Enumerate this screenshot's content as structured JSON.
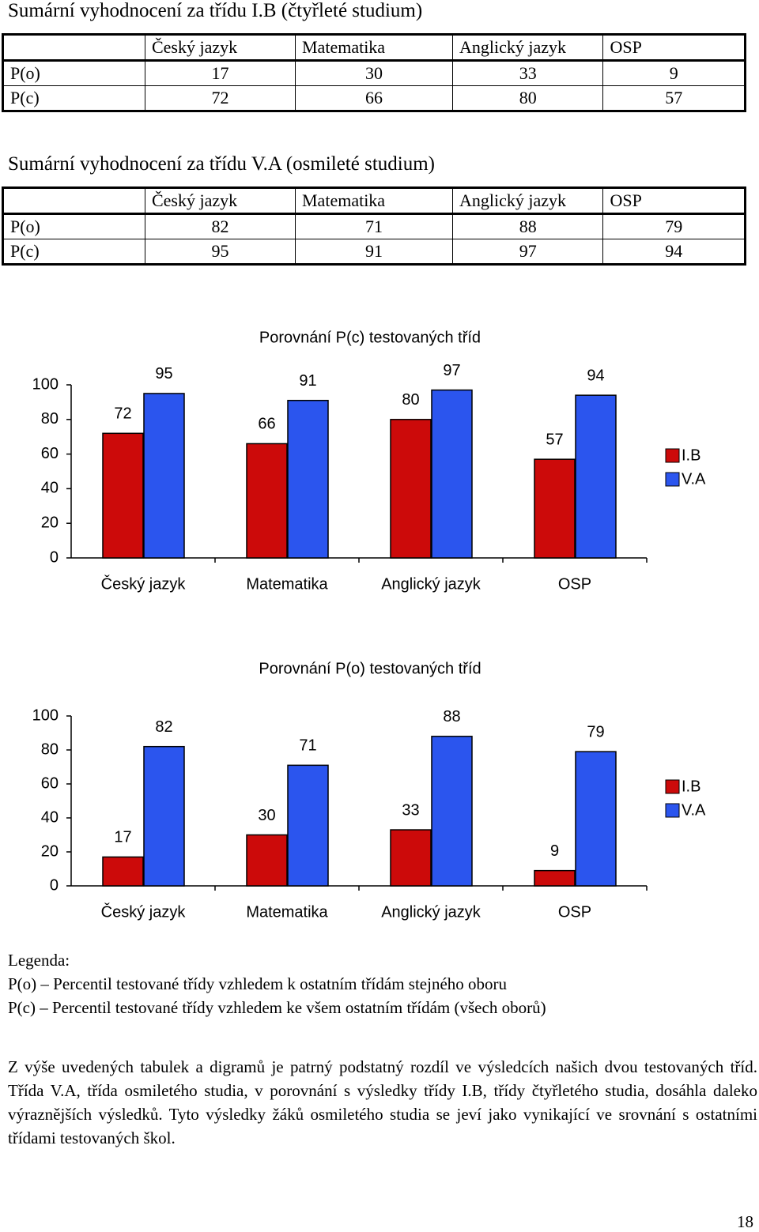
{
  "sections": [
    {
      "title": "Sumární vyhodnocení za třídu I.B (čtyřleté studium)",
      "table": {
        "headers": [
          "Český jazyk",
          "Matematika",
          "Anglický jazyk",
          "OSP"
        ],
        "rows": [
          {
            "label": "P(o)",
            "values": [
              17,
              30,
              33,
              9
            ]
          },
          {
            "label": "P(c)",
            "values": [
              72,
              66,
              80,
              57
            ]
          }
        ]
      }
    },
    {
      "title": "Sumární vyhodnocení za třídu V.A (osmileté studium)",
      "table": {
        "headers": [
          "Český jazyk",
          "Matematika",
          "Anglický jazyk",
          "OSP"
        ],
        "rows": [
          {
            "label": "P(o)",
            "values": [
              82,
              71,
              88,
              79
            ]
          },
          {
            "label": "P(c)",
            "values": [
              95,
              91,
              97,
              94
            ]
          }
        ]
      }
    }
  ],
  "chart_data": [
    {
      "type": "bar",
      "title": "Porovnání P(c) testovaných tříd",
      "categories": [
        "Český jazyk",
        "Matematika",
        "Anglický jazyk",
        "OSP"
      ],
      "series": [
        {
          "name": "I.B",
          "color": "#cc0a0a",
          "values": [
            72,
            66,
            80,
            57
          ]
        },
        {
          "name": "V.A",
          "color": "#2b55ee",
          "values": [
            95,
            91,
            97,
            94
          ]
        }
      ],
      "ylim": [
        0,
        100
      ],
      "yticks": [
        0,
        20,
        40,
        60,
        80,
        100
      ],
      "legend": "right"
    },
    {
      "type": "bar",
      "title": "Porovnání P(o) testovaných tříd",
      "categories": [
        "Český jazyk",
        "Matematika",
        "Anglický jazyk",
        "OSP"
      ],
      "series": [
        {
          "name": "I.B",
          "color": "#cc0a0a",
          "values": [
            17,
            30,
            33,
            9
          ]
        },
        {
          "name": "V.A",
          "color": "#2b55ee",
          "values": [
            82,
            71,
            88,
            79
          ]
        }
      ],
      "ylim": [
        0,
        100
      ],
      "yticks": [
        0,
        20,
        40,
        60,
        80,
        100
      ],
      "legend": "right"
    }
  ],
  "legend": {
    "heading": "Legenda:",
    "items": [
      "P(o) – Percentil testované třídy vzhledem k ostatním třídám stejného oboru",
      "P(c) – Percentil testované třídy vzhledem ke všem ostatním třídám (všech oborů)"
    ]
  },
  "paragraph": "Z výše uvedených tabulek a digramů je patrný podstatný rozdíl ve výsledcích našich dvou testovaných tříd. Třída V.A, třída osmiletého studia, v porovnání s výsledky třídy I.B, třídy čtyřletého studia, dosáhla daleko výraznějších výsledků. Tyto výsledky žáků osmiletého studia se jeví jako vynikající ve srovnání s ostatními třídami testovaných škol.",
  "page_number": 18
}
